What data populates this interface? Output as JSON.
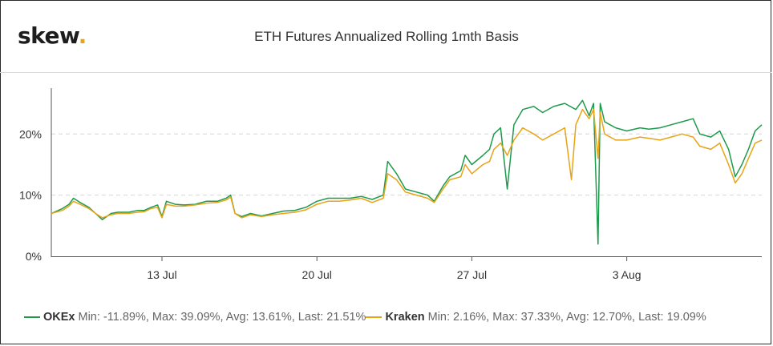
{
  "logo": {
    "text": "skew",
    "dot": "."
  },
  "chart_data": {
    "type": "line",
    "title": "ETH Futures Annualized Rolling 1mth Basis",
    "xlabel": "",
    "ylabel": "",
    "x_ticks": [
      {
        "label": "13 Jul",
        "day": 13
      },
      {
        "label": "20 Jul",
        "day": 20
      },
      {
        "label": "27 Jul",
        "day": 27
      },
      {
        "label": "3 Aug",
        "day": 34
      }
    ],
    "y_ticks": [
      {
        "label": "0%",
        "value": 0
      },
      {
        "label": "10%",
        "value": 10
      },
      {
        "label": "20%",
        "value": 20
      }
    ],
    "xlim": [
      8,
      40.1
    ],
    "ylim": [
      0,
      27.5
    ],
    "grid": "horizontal dashed",
    "legend_position": "bottom",
    "series": [
      {
        "name": "OKEx",
        "color": "#1e9a4c",
        "stats": "Min: -11.89%, Max: 39.09%, Avg: 13.61%, Last: 21.51%",
        "points": [
          [
            8.0,
            7.0
          ],
          [
            8.5,
            7.8
          ],
          [
            8.8,
            8.5
          ],
          [
            9.0,
            9.5
          ],
          [
            9.3,
            8.8
          ],
          [
            9.7,
            8.0
          ],
          [
            10.0,
            7.0
          ],
          [
            10.3,
            6.0
          ],
          [
            10.7,
            7.0
          ],
          [
            11.0,
            7.2
          ],
          [
            11.5,
            7.2
          ],
          [
            11.9,
            7.5
          ],
          [
            12.2,
            7.5
          ],
          [
            12.5,
            8.0
          ],
          [
            12.8,
            8.4
          ],
          [
            13.0,
            6.5
          ],
          [
            13.2,
            9.0
          ],
          [
            13.6,
            8.5
          ],
          [
            14.0,
            8.4
          ],
          [
            14.5,
            8.5
          ],
          [
            15.0,
            9.0
          ],
          [
            15.5,
            9.0
          ],
          [
            15.9,
            9.5
          ],
          [
            16.1,
            10.0
          ],
          [
            16.3,
            7.0
          ],
          [
            16.6,
            6.5
          ],
          [
            17.0,
            7.0
          ],
          [
            17.5,
            6.6
          ],
          [
            18.0,
            7.0
          ],
          [
            18.5,
            7.4
          ],
          [
            19.0,
            7.5
          ],
          [
            19.5,
            8.0
          ],
          [
            20.0,
            9.0
          ],
          [
            20.5,
            9.5
          ],
          [
            21.0,
            9.5
          ],
          [
            21.5,
            9.5
          ],
          [
            22.0,
            9.8
          ],
          [
            22.5,
            9.3
          ],
          [
            23.0,
            10.0
          ],
          [
            23.2,
            15.5
          ],
          [
            23.6,
            13.5
          ],
          [
            24.0,
            11.0
          ],
          [
            24.5,
            10.5
          ],
          [
            25.0,
            10.0
          ],
          [
            25.3,
            9.0
          ],
          [
            25.7,
            11.5
          ],
          [
            26.0,
            13.0
          ],
          [
            26.5,
            14.0
          ],
          [
            26.7,
            16.5
          ],
          [
            27.0,
            15.0
          ],
          [
            27.5,
            16.5
          ],
          [
            27.8,
            17.5
          ],
          [
            28.0,
            20.0
          ],
          [
            28.3,
            21.0
          ],
          [
            28.6,
            11.0
          ],
          [
            28.9,
            21.5
          ],
          [
            29.3,
            24.0
          ],
          [
            29.8,
            24.5
          ],
          [
            30.2,
            23.5
          ],
          [
            30.7,
            24.5
          ],
          [
            31.2,
            25.0
          ],
          [
            31.7,
            24.0
          ],
          [
            32.0,
            25.5
          ],
          [
            32.3,
            23.0
          ],
          [
            32.5,
            25.0
          ],
          [
            32.7,
            2.0
          ],
          [
            32.8,
            25.0
          ],
          [
            33.0,
            22.0
          ],
          [
            33.5,
            21.0
          ],
          [
            34.0,
            20.5
          ],
          [
            34.6,
            21.0
          ],
          [
            35.0,
            20.8
          ],
          [
            35.5,
            21.0
          ],
          [
            36.0,
            21.5
          ],
          [
            36.5,
            22.0
          ],
          [
            37.0,
            22.5
          ],
          [
            37.3,
            20.0
          ],
          [
            37.8,
            19.5
          ],
          [
            38.2,
            20.5
          ],
          [
            38.6,
            17.5
          ],
          [
            38.9,
            13.0
          ],
          [
            39.2,
            15.0
          ],
          [
            39.5,
            17.5
          ],
          [
            39.8,
            20.5
          ],
          [
            40.1,
            21.5
          ]
        ]
      },
      {
        "name": "Kraken",
        "color": "#e8a317",
        "stats": "Min: 2.16%, Max: 37.33%, Avg: 12.70%, Last: 19.09%",
        "points": [
          [
            8.0,
            7.0
          ],
          [
            8.5,
            7.5
          ],
          [
            8.8,
            8.2
          ],
          [
            9.0,
            9.0
          ],
          [
            9.3,
            8.5
          ],
          [
            9.7,
            7.8
          ],
          [
            10.0,
            7.0
          ],
          [
            10.3,
            6.3
          ],
          [
            10.7,
            6.8
          ],
          [
            11.0,
            7.0
          ],
          [
            11.5,
            7.0
          ],
          [
            11.9,
            7.2
          ],
          [
            12.2,
            7.3
          ],
          [
            12.5,
            7.8
          ],
          [
            12.8,
            8.0
          ],
          [
            13.0,
            6.3
          ],
          [
            13.2,
            8.5
          ],
          [
            13.6,
            8.2
          ],
          [
            14.0,
            8.2
          ],
          [
            14.5,
            8.4
          ],
          [
            15.0,
            8.7
          ],
          [
            15.5,
            8.8
          ],
          [
            15.9,
            9.2
          ],
          [
            16.1,
            9.7
          ],
          [
            16.3,
            7.0
          ],
          [
            16.6,
            6.3
          ],
          [
            17.0,
            6.8
          ],
          [
            17.5,
            6.5
          ],
          [
            18.0,
            6.8
          ],
          [
            18.5,
            7.0
          ],
          [
            19.0,
            7.2
          ],
          [
            19.5,
            7.6
          ],
          [
            20.0,
            8.5
          ],
          [
            20.5,
            9.0
          ],
          [
            21.0,
            9.0
          ],
          [
            21.5,
            9.2
          ],
          [
            22.0,
            9.5
          ],
          [
            22.5,
            8.8
          ],
          [
            23.0,
            9.5
          ],
          [
            23.2,
            13.5
          ],
          [
            23.6,
            12.5
          ],
          [
            24.0,
            10.5
          ],
          [
            24.5,
            10.0
          ],
          [
            25.0,
            9.5
          ],
          [
            25.3,
            8.8
          ],
          [
            25.7,
            11.0
          ],
          [
            26.0,
            12.5
          ],
          [
            26.5,
            13.0
          ],
          [
            26.7,
            15.0
          ],
          [
            27.0,
            13.5
          ],
          [
            27.5,
            15.0
          ],
          [
            27.8,
            15.5
          ],
          [
            28.0,
            17.5
          ],
          [
            28.3,
            18.5
          ],
          [
            28.6,
            16.5
          ],
          [
            28.9,
            19.0
          ],
          [
            29.3,
            21.0
          ],
          [
            29.8,
            20.0
          ],
          [
            30.2,
            19.0
          ],
          [
            30.7,
            20.0
          ],
          [
            31.2,
            21.0
          ],
          [
            31.5,
            12.5
          ],
          [
            31.7,
            21.5
          ],
          [
            32.0,
            24.0
          ],
          [
            32.3,
            22.5
          ],
          [
            32.5,
            24.0
          ],
          [
            32.7,
            16.0
          ],
          [
            32.8,
            23.5
          ],
          [
            33.0,
            20.0
          ],
          [
            33.5,
            19.0
          ],
          [
            34.0,
            19.0
          ],
          [
            34.6,
            19.5
          ],
          [
            35.0,
            19.3
          ],
          [
            35.5,
            19.0
          ],
          [
            36.0,
            19.5
          ],
          [
            36.5,
            20.0
          ],
          [
            37.0,
            19.5
          ],
          [
            37.3,
            18.0
          ],
          [
            37.8,
            17.5
          ],
          [
            38.2,
            18.5
          ],
          [
            38.6,
            15.0
          ],
          [
            38.9,
            12.0
          ],
          [
            39.2,
            13.5
          ],
          [
            39.5,
            16.0
          ],
          [
            39.8,
            18.5
          ],
          [
            40.1,
            19.0
          ]
        ]
      }
    ]
  }
}
